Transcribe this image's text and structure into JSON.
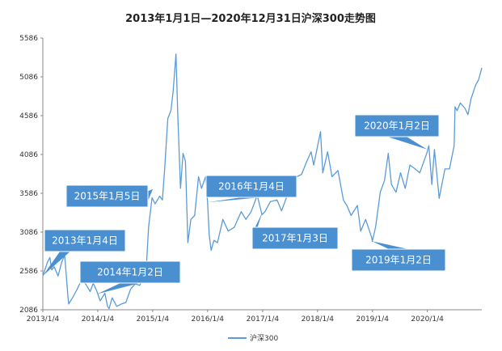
{
  "chart_data": {
    "type": "line",
    "title": "2013年1月1日—2020年12月31日沪深300走势图",
    "xlabel": "",
    "ylabel": "",
    "ylim": [
      2086,
      5586
    ],
    "y_ticks": [
      2086,
      2586,
      3086,
      3586,
      4086,
      4586,
      5086,
      5586
    ],
    "x_ticks": [
      "2013/1/4",
      "2014/1/4",
      "2015/1/4",
      "2016/1/4",
      "2017/1/4",
      "2018/1/4",
      "2019/1/4",
      "2020/1/4"
    ],
    "xlim": [
      "2013-01-04",
      "2020-12-31"
    ],
    "grid": false,
    "legend": "bottom-center",
    "line_color": "#5b9bd5",
    "callout_color": "#4a8fd0",
    "series": [
      {
        "name": "沪深300",
        "points": [
          [
            "2013-01-04",
            2524
          ],
          [
            "2013-02-04",
            2700
          ],
          [
            "2013-02-20",
            2760
          ],
          [
            "2013-03-04",
            2600
          ],
          [
            "2013-03-20",
            2640
          ],
          [
            "2013-04-15",
            2520
          ],
          [
            "2013-05-10",
            2700
          ],
          [
            "2013-05-29",
            2790
          ],
          [
            "2013-06-20",
            2250
          ],
          [
            "2013-06-25",
            2160
          ],
          [
            "2013-07-20",
            2240
          ],
          [
            "2013-08-20",
            2350
          ],
          [
            "2013-09-15",
            2460
          ],
          [
            "2013-10-15",
            2420
          ],
          [
            "2013-11-15",
            2320
          ],
          [
            "2013-12-05",
            2430
          ],
          [
            "2013-12-30",
            2320
          ],
          [
            "2014-01-20",
            2200
          ],
          [
            "2014-02-20",
            2300
          ],
          [
            "2014-03-10",
            2130
          ],
          [
            "2014-03-20",
            2100
          ],
          [
            "2014-04-10",
            2240
          ],
          [
            "2014-05-10",
            2130
          ],
          [
            "2014-06-10",
            2160
          ],
          [
            "2014-07-10",
            2180
          ],
          [
            "2014-08-10",
            2350
          ],
          [
            "2014-09-10",
            2420
          ],
          [
            "2014-10-10",
            2400
          ],
          [
            "2014-11-10",
            2530
          ],
          [
            "2014-11-25",
            2700
          ],
          [
            "2014-12-08",
            3150
          ],
          [
            "2014-12-31",
            3530
          ],
          [
            "2015-01-20",
            3450
          ],
          [
            "2015-02-20",
            3550
          ],
          [
            "2015-03-10",
            3500
          ],
          [
            "2015-03-25",
            3900
          ],
          [
            "2015-04-15",
            4550
          ],
          [
            "2015-05-05",
            4650
          ],
          [
            "2015-05-20",
            4900
          ],
          [
            "2015-06-08",
            5380
          ],
          [
            "2015-06-20",
            4600
          ],
          [
            "2015-07-08",
            3650
          ],
          [
            "2015-07-25",
            4100
          ],
          [
            "2015-08-10",
            4000
          ],
          [
            "2015-08-26",
            2950
          ],
          [
            "2015-09-15",
            3250
          ],
          [
            "2015-10-10",
            3300
          ],
          [
            "2015-11-05",
            3800
          ],
          [
            "2015-11-25",
            3650
          ],
          [
            "2015-12-22",
            3800
          ],
          [
            "2016-01-04",
            3470
          ],
          [
            "2016-01-15",
            3050
          ],
          [
            "2016-01-28",
            2850
          ],
          [
            "2016-02-15",
            2980
          ],
          [
            "2016-03-10",
            2950
          ],
          [
            "2016-04-15",
            3250
          ],
          [
            "2016-05-20",
            3100
          ],
          [
            "2016-06-30",
            3150
          ],
          [
            "2016-08-15",
            3350
          ],
          [
            "2016-09-15",
            3250
          ],
          [
            "2016-10-20",
            3350
          ],
          [
            "2016-11-29",
            3560
          ],
          [
            "2016-12-31",
            3310
          ],
          [
            "2017-01-20",
            3350
          ],
          [
            "2017-02-25",
            3480
          ],
          [
            "2017-04-10",
            3500
          ],
          [
            "2017-05-10",
            3360
          ],
          [
            "2017-06-15",
            3550
          ],
          [
            "2017-07-20",
            3720
          ],
          [
            "2017-08-20",
            3800
          ],
          [
            "2017-09-20",
            3830
          ],
          [
            "2017-10-25",
            4000
          ],
          [
            "2017-11-22",
            4120
          ],
          [
            "2017-12-10",
            3950
          ],
          [
            "2018-01-24",
            4380
          ],
          [
            "2018-02-08",
            3850
          ],
          [
            "2018-03-12",
            4120
          ],
          [
            "2018-04-10",
            3800
          ],
          [
            "2018-05-20",
            3880
          ],
          [
            "2018-06-25",
            3500
          ],
          [
            "2018-07-20",
            3420
          ],
          [
            "2018-08-15",
            3300
          ],
          [
            "2018-09-26",
            3430
          ],
          [
            "2018-10-18",
            3100
          ],
          [
            "2018-11-20",
            3250
          ],
          [
            "2018-12-31",
            3010
          ],
          [
            "2019-01-03",
            2965
          ],
          [
            "2019-01-25",
            3150
          ],
          [
            "2019-02-25",
            3600
          ],
          [
            "2019-03-25",
            3750
          ],
          [
            "2019-04-19",
            4100
          ],
          [
            "2019-05-10",
            3700
          ],
          [
            "2019-06-10",
            3600
          ],
          [
            "2019-07-10",
            3850
          ],
          [
            "2019-08-10",
            3650
          ],
          [
            "2019-09-10",
            3950
          ],
          [
            "2019-10-15",
            3900
          ],
          [
            "2019-11-15",
            3850
          ],
          [
            "2019-12-31",
            4100
          ],
          [
            "2020-01-14",
            4200
          ],
          [
            "2020-02-03",
            3700
          ],
          [
            "2020-02-20",
            4150
          ],
          [
            "2020-03-23",
            3520
          ],
          [
            "2020-04-30",
            3900
          ],
          [
            "2020-05-30",
            3900
          ],
          [
            "2020-06-30",
            4200
          ],
          [
            "2020-07-06",
            4700
          ],
          [
            "2020-07-20",
            4650
          ],
          [
            "2020-08-10",
            4750
          ],
          [
            "2020-09-10",
            4680
          ],
          [
            "2020-09-30",
            4600
          ],
          [
            "2020-10-20",
            4800
          ],
          [
            "2020-11-20",
            4980
          ],
          [
            "2020-12-10",
            5050
          ],
          [
            "2020-12-31",
            5200
          ]
        ]
      }
    ],
    "annotations": [
      {
        "text": "2013年1月4日",
        "date": "2013-01-04",
        "value": 2524
      },
      {
        "text": "2014年1月2日",
        "date": "2014-01-02",
        "value": 2290
      },
      {
        "text": "2015年1月5日",
        "date": "2015-01-05",
        "value": 3641
      },
      {
        "text": "2016年1月4日",
        "date": "2016-01-04",
        "value": 3470
      },
      {
        "text": "2017年1月3日",
        "date": "2017-01-03",
        "value": 3342
      },
      {
        "text": "2019年1月2日",
        "date": "2019-01-02",
        "value": 2969
      },
      {
        "text": "2020年1月2日",
        "date": "2020-01-02",
        "value": 4152
      }
    ]
  }
}
